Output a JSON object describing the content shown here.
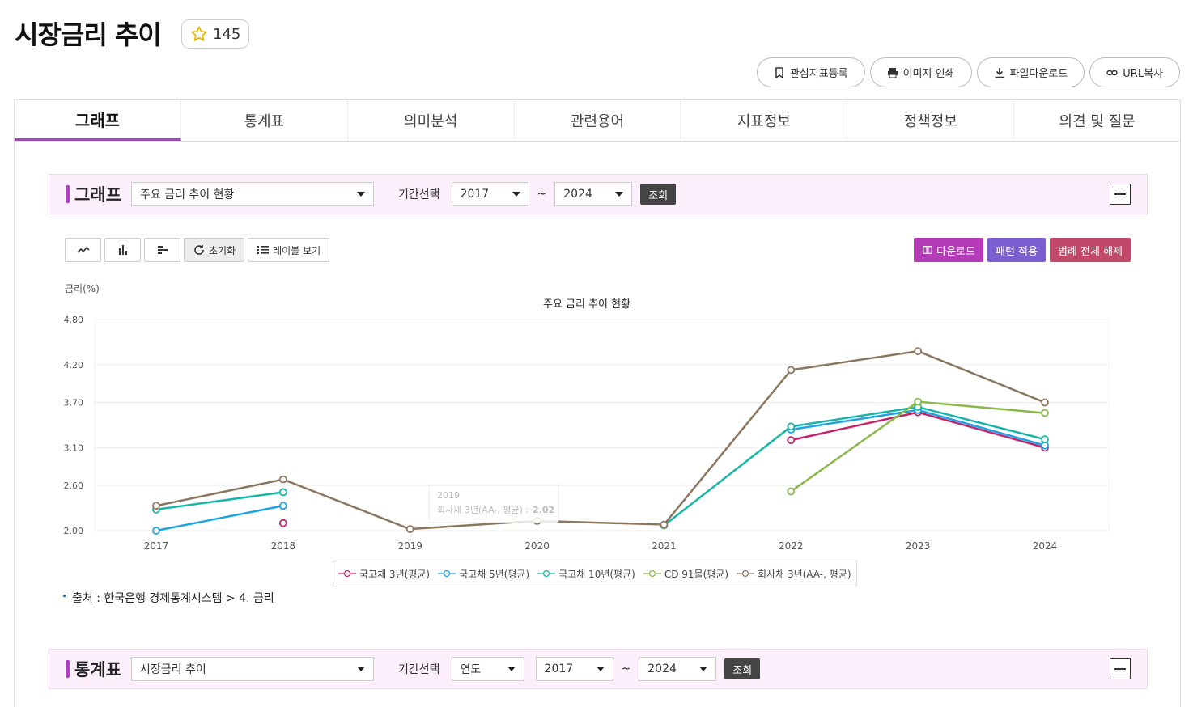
{
  "page": {
    "title": "시장금리 추이",
    "favorite_count": "145"
  },
  "actions": [
    {
      "label": "관심지표등록",
      "icon": "bookmark-icon"
    },
    {
      "label": "이미지 인쇄",
      "icon": "printer-icon"
    },
    {
      "label": "파일다운로드",
      "icon": "download-icon"
    },
    {
      "label": "URL복사",
      "icon": "link-icon"
    }
  ],
  "tabs": [
    "그래프",
    "통계표",
    "의미분석",
    "관련용어",
    "지표정보",
    "정책정보",
    "의견 및 질문"
  ],
  "graph_section": {
    "title": "그래프",
    "select_value": "주요 금리 추이 현황",
    "period_label": "기간선택",
    "from": "2017",
    "tilde": "~",
    "to": "2024",
    "query": "조회"
  },
  "tools": {
    "reset": "초기화",
    "labels": "레이블 보기"
  },
  "right_tools": [
    {
      "label": "다운로드",
      "color": "#b43ab8"
    },
    {
      "label": "패턴 적용",
      "color": "#7b5fd0"
    },
    {
      "label": "범례 전체 해제",
      "color": "#c2486a"
    }
  ],
  "tooltip": {
    "year": "2019",
    "series": "회사채 3년(AA-, 평균)",
    "value": "2.02"
  },
  "source": "출처 : 한국은행 경제통계시스템 > 4. 금리",
  "table_section": {
    "title": "통계표",
    "select_value": "시장금리 추이",
    "period_label": "기간선택",
    "unit": "연도",
    "from": "2017",
    "tilde": "~",
    "to": "2024",
    "query": "조회"
  },
  "chart_data": {
    "type": "line",
    "title": "주요 금리 추이 현황",
    "ylabel": "금리(%)",
    "ylim": [
      2.0,
      4.8
    ],
    "yticks": [
      "4.80",
      "4.20",
      "3.70",
      "3.10",
      "2.60",
      "2.00"
    ],
    "categories": [
      "2017",
      "2018",
      "2019",
      "2020",
      "2021",
      "2022",
      "2023",
      "2024"
    ],
    "series": [
      {
        "name": "국고채 3년(평균)",
        "color": "#c2256c",
        "values": [
          null,
          2.1,
          null,
          null,
          null,
          3.2,
          3.57,
          3.1
        ]
      },
      {
        "name": "국고채 5년(평균)",
        "color": "#1ea3e0",
        "values": [
          2.0,
          2.33,
          null,
          null,
          null,
          3.34,
          3.6,
          3.13
        ]
      },
      {
        "name": "국고채 10년(평균)",
        "color": "#17b5a8",
        "values": [
          2.28,
          2.51,
          null,
          null,
          2.07,
          3.38,
          3.64,
          3.21
        ]
      },
      {
        "name": "CD 91물(평균)",
        "color": "#8ab84a",
        "values": [
          null,
          null,
          null,
          null,
          null,
          2.52,
          3.71,
          3.56
        ]
      },
      {
        "name": "회사채 3년(AA-, 평균)",
        "color": "#8c7660",
        "values": [
          2.33,
          2.68,
          2.02,
          2.13,
          2.08,
          4.13,
          4.38,
          3.7
        ]
      }
    ]
  }
}
